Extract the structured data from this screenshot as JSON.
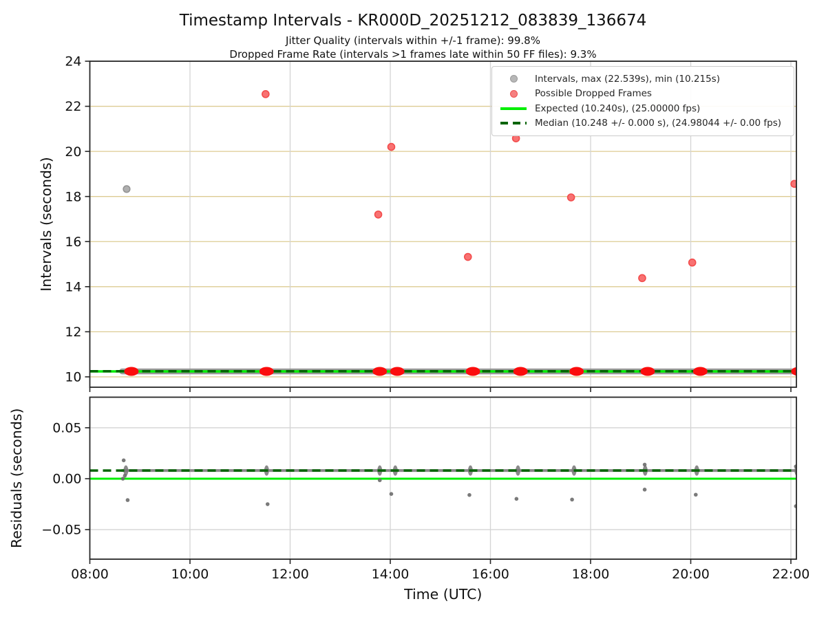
{
  "header": {
    "title": "Timestamp Intervals - KR000D_20251212_083839_136674",
    "subtitle1": "Jitter Quality (intervals within +/-1 frame): 99.8%",
    "subtitle2": "Dropped Frame Rate (intervals >1 frames late within 50 FF files): 9.3%"
  },
  "legend": {
    "items": [
      {
        "marker": "dot",
        "fill": "#b7b7b7",
        "edge": "#9a9a9a",
        "label": "Intervals, max (22.539s), min (10.215s)"
      },
      {
        "marker": "dot",
        "fill": "#f58080",
        "edge": "#ef5050",
        "label": "Possible Dropped Frames"
      },
      {
        "marker": "line",
        "fill": "#00ef00",
        "edge": "#00ef00",
        "label": "Expected (10.240s), (25.00000 fps)"
      },
      {
        "marker": "dash",
        "fill": "#006400",
        "edge": "#006400",
        "label": "Median (10.248 +/- 0.000 s), (24.98044 +/- 0.00 fps)"
      }
    ]
  },
  "chart_data": {
    "type": "scatter",
    "title": "Timestamp Intervals - KR000D_20251212_083839_136674",
    "stats": {
      "jitter_quality_pct": 99.8,
      "dropped_frame_rate_pct": 9.3,
      "max_interval_s": 22.539,
      "min_interval_s": 10.215,
      "expected_interval_s": 10.24,
      "expected_fps": 25.0,
      "median_interval_s": 10.248,
      "median_interval_err_s": 0.0,
      "median_fps": 24.98044,
      "median_fps_err": 0.0
    },
    "x": {
      "label": "Time (UTC)",
      "tick_labels": [
        "08:00",
        "10:00",
        "12:00",
        "14:00",
        "16:00",
        "18:00",
        "20:00",
        "22:00"
      ],
      "tick_hours": [
        8,
        10,
        12,
        14,
        16,
        18,
        20,
        22
      ],
      "range_hours": [
        8.0,
        22.11
      ]
    },
    "colors": {
      "expected": "#00ef00",
      "median": "#006400",
      "interval_marker": "#ababab",
      "interval_marker_edge": "#8e8e8e",
      "dropped_marker": "#f87272",
      "dropped_marker_edge": "#f34c4c",
      "dropped_cluster": "#fb0d0d",
      "baseline_band": "#8e8e8e",
      "grid_tan": "#ddcb92",
      "grid_gray": "#d4d4d4",
      "spine": "#262626"
    },
    "panels": [
      {
        "id": "intervals",
        "ylabel": "Intervals (seconds)",
        "ylim": [
          9.54,
          24.0
        ],
        "y_tick_values": [
          10,
          12,
          14,
          16,
          18,
          20,
          22,
          24
        ],
        "y_tick_labels": [
          "10",
          "12",
          "14",
          "16",
          "18",
          "20",
          "22",
          "24"
        ],
        "expected_value": 10.24,
        "median_value": 10.248,
        "baseline": {
          "value": 10.243,
          "start_h": 8.645,
          "end_h": 22.11
        },
        "gray_points": [
          {
            "h": 8.735,
            "v": 18.33
          }
        ],
        "red_points": [
          {
            "h": 11.51,
            "v": 22.54
          },
          {
            "h": 13.76,
            "v": 17.2
          },
          {
            "h": 14.02,
            "v": 20.2
          },
          {
            "h": 15.55,
            "v": 15.32
          },
          {
            "h": 16.51,
            "v": 20.58
          },
          {
            "h": 17.61,
            "v": 17.96
          },
          {
            "h": 19.03,
            "v": 14.38
          },
          {
            "h": 20.03,
            "v": 15.07
          },
          {
            "h": 22.07,
            "v": 18.56
          }
        ],
        "red_cluster_hours": [
          8.83,
          11.53,
          13.79,
          14.14,
          15.65,
          16.6,
          17.72,
          19.14,
          20.19,
          22.15
        ]
      },
      {
        "id": "residuals",
        "ylabel": "Residuals (seconds)",
        "ylim": [
          -0.079,
          0.08
        ],
        "y_tick_values": [
          -0.05,
          0.0,
          0.05
        ],
        "y_tick_labels": [
          "−0.05",
          "0.00",
          "0.05"
        ],
        "expected_value": 0.0,
        "median_value": 0.008,
        "band": {
          "value": 0.008,
          "start_h": 8.645,
          "end_h": 22.11
        },
        "spread_hours": [
          8.72,
          11.53,
          13.79,
          14.1,
          15.6,
          16.55,
          17.67,
          19.09,
          20.12,
          22.12
        ],
        "points": [
          {
            "h": 8.676,
            "r": 0.018
          },
          {
            "h": 8.7,
            "r": 0.003
          },
          {
            "h": 8.66,
            "r": 0.0
          },
          {
            "h": 8.755,
            "r": -0.021
          },
          {
            "h": 11.55,
            "r": -0.025
          },
          {
            "h": 13.79,
            "r": -0.0015
          },
          {
            "h": 14.02,
            "r": -0.015
          },
          {
            "h": 15.58,
            "r": -0.016
          },
          {
            "h": 16.52,
            "r": -0.0198
          },
          {
            "h": 17.63,
            "r": -0.0205
          },
          {
            "h": 19.08,
            "r": 0.0138
          },
          {
            "h": 19.08,
            "r": -0.0107
          },
          {
            "h": 20.1,
            "r": -0.0157
          },
          {
            "h": 22.1,
            "r": 0.012
          },
          {
            "h": 22.1,
            "r": -0.027
          }
        ]
      }
    ]
  }
}
